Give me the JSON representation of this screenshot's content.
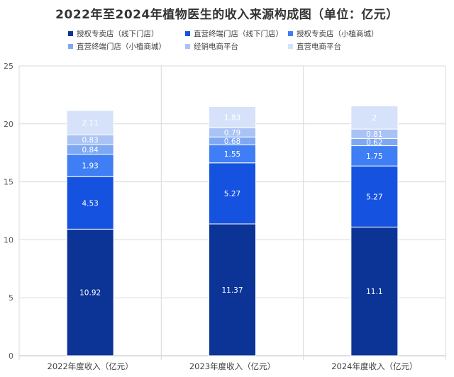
{
  "title": "2022年至2024年植物医生的收入来源构成图（单位：亿元）",
  "chart_data": {
    "type": "bar",
    "stacked": true,
    "title": "2022年至2024年植物医生的收入来源构成图（单位：亿元）",
    "categories": [
      "2022年度收入（亿元）",
      "2023年度收入（亿元）",
      "2024年度收入（亿元）"
    ],
    "series": [
      {
        "name": "授权专卖店（线下门店）",
        "values": [
          10.92,
          11.37,
          11.1
        ],
        "color": "#0b3496",
        "label_color": "#ffffff"
      },
      {
        "name": "直营终端门店（线下门店）",
        "values": [
          4.53,
          5.27,
          5.27
        ],
        "color": "#1652e0",
        "label_color": "#ffffff"
      },
      {
        "name": "授权专卖店（小植商城）",
        "values": [
          1.93,
          1.55,
          1.75
        ],
        "color": "#3f7ef4",
        "label_color": "#ffffff"
      },
      {
        "name": "直营终端门店（小植商城）",
        "values": [
          0.84,
          0.68,
          0.62
        ],
        "color": "#7ea8f4",
        "label_color": "#ffffff"
      },
      {
        "name": "经销电商平台",
        "values": [
          0.83,
          0.79,
          0.81
        ],
        "color": "#a9c3f5",
        "label_color": "#ffffff"
      },
      {
        "name": "直营电商平台",
        "values": [
          2.11,
          1.83,
          2
        ],
        "color": "#d6e2f9",
        "label_color": "#ffffff"
      }
    ],
    "ylim": [
      0,
      25
    ],
    "yticks": [
      0,
      5,
      10,
      15,
      20,
      25
    ],
    "grid": true,
    "legend_position": "top"
  }
}
